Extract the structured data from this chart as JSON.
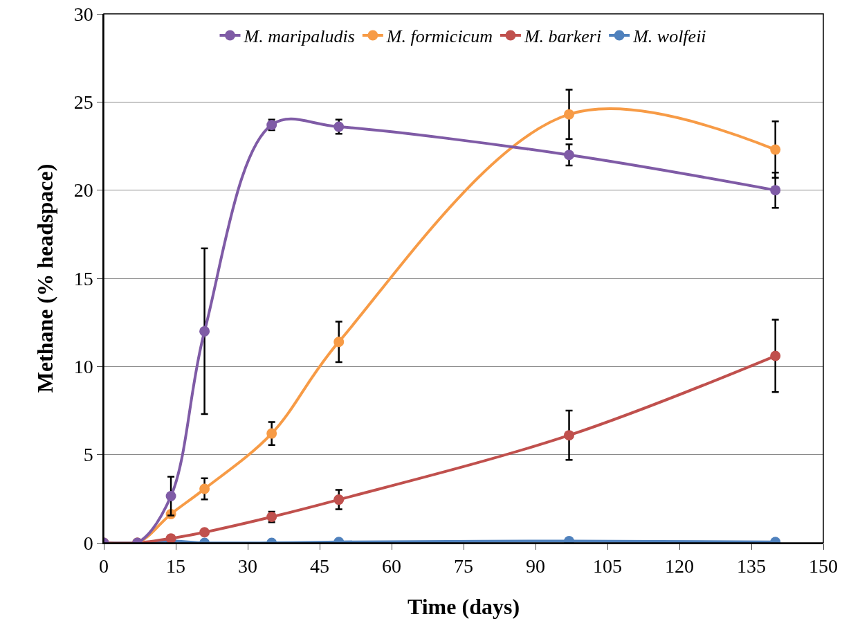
{
  "chart_data": {
    "type": "line",
    "xlabel": "Time (days)",
    "ylabel": "Methane (% headspace)",
    "x": [
      0,
      7,
      14,
      21,
      35,
      49,
      97,
      140
    ],
    "xlim": [
      0,
      150
    ],
    "xticks": [
      0,
      15,
      30,
      45,
      60,
      75,
      90,
      105,
      120,
      135,
      150
    ],
    "ylim": [
      0,
      30
    ],
    "yticks": [
      0,
      5,
      10,
      15,
      20,
      25,
      30
    ],
    "grid": "y",
    "legend": "top",
    "marker": "circle",
    "line_style": "solid",
    "series": [
      {
        "name": "M. maripaludis",
        "color": "#7f5ba6",
        "values": [
          0,
          0,
          2.65,
          12.0,
          23.7,
          23.6,
          22.0,
          20.0
        ],
        "errors": [
          null,
          null,
          1.1,
          4.7,
          0.3,
          0.4,
          0.6,
          1.0
        ]
      },
      {
        "name": "M. formicicum",
        "color": "#f79b46",
        "values": [
          0,
          0,
          1.63,
          3.06,
          6.2,
          11.4,
          24.3,
          22.3
        ],
        "errors": [
          null,
          null,
          null,
          0.6,
          0.65,
          1.15,
          1.4,
          1.6
        ]
      },
      {
        "name": "M. barkeri",
        "color": "#c0504d",
        "values": [
          0,
          0,
          0.25,
          0.6,
          1.47,
          2.45,
          6.1,
          10.6
        ],
        "errors": [
          null,
          null,
          null,
          null,
          0.3,
          0.55,
          1.4,
          2.05
        ]
      },
      {
        "name": "M. wolfeii",
        "color": "#4f81bd",
        "values": [
          0,
          0,
          0.1,
          0,
          0,
          0.05,
          0.1,
          0.05
        ]
      }
    ]
  }
}
